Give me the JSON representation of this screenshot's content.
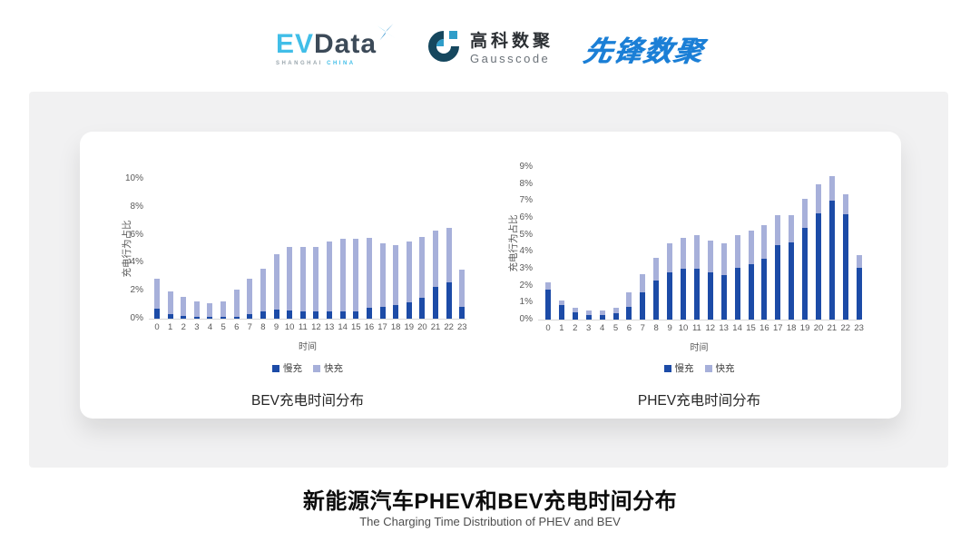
{
  "header": {
    "evdata": {
      "ev": "EV",
      "data": "Data",
      "sub_left": "SHANGHAI",
      "sub_right": "CHINA"
    },
    "gausscode": {
      "cn": "高科数聚",
      "en": "Gausscode"
    },
    "xianfeng": {
      "text": "先锋数聚"
    }
  },
  "footer": {
    "title": "新能源汽车PHEV和BEV充电时间分布",
    "subtitle": "The Charging Time Distribution of PHEV and BEV"
  },
  "colors": {
    "slow": "#1c4ba7",
    "fast": "#a7b0da",
    "axis_text": "#595959",
    "baseline": "#d9d9d9",
    "panel_bg": "#f1f1f2",
    "evdata_cyan": "#41bee8",
    "evdata_dark": "#3c4a58",
    "gauss_navy": "#15475e",
    "gauss_blue": "#2f9dc9",
    "xianfeng_blue": "#1b7fd6"
  },
  "chart_data": [
    {
      "type": "bar",
      "stacked": true,
      "title": "BEV充电时间分布",
      "xlabel": "时间",
      "ylabel": "充电行为占比",
      "ylim": [
        0,
        10
      ],
      "ytick_step": 2,
      "ytick_suffix": "%",
      "grid": false,
      "legend_position": "bottom",
      "categories": [
        "0",
        "1",
        "2",
        "3",
        "4",
        "5",
        "6",
        "7",
        "8",
        "9",
        "10",
        "11",
        "12",
        "13",
        "14",
        "15",
        "16",
        "17",
        "18",
        "19",
        "20",
        "21",
        "22",
        "23"
      ],
      "series": [
        {
          "name": "慢充",
          "values": [
            0.7,
            0.35,
            0.2,
            0.1,
            0.1,
            0.1,
            0.15,
            0.35,
            0.5,
            0.65,
            0.6,
            0.55,
            0.5,
            0.55,
            0.55,
            0.55,
            0.75,
            0.85,
            1.0,
            1.2,
            1.5,
            2.3,
            2.6,
            0.85
          ]
        },
        {
          "name": "快充",
          "values": [
            2.15,
            1.6,
            1.35,
            1.15,
            1.0,
            1.15,
            1.9,
            2.5,
            3.1,
            3.95,
            4.5,
            4.6,
            4.65,
            5.0,
            5.15,
            5.15,
            5.0,
            4.55,
            4.25,
            4.3,
            4.35,
            4.0,
            3.9,
            2.65
          ]
        }
      ]
    },
    {
      "type": "bar",
      "stacked": true,
      "title": "PHEV充电时间分布",
      "xlabel": "时间",
      "ylabel": "充电行为占比",
      "ylim": [
        0,
        9
      ],
      "ytick_step": 1,
      "ytick_suffix": "%",
      "grid": false,
      "legend_position": "bottom",
      "categories": [
        "0",
        "1",
        "2",
        "3",
        "4",
        "5",
        "6",
        "7",
        "8",
        "9",
        "10",
        "11",
        "12",
        "13",
        "14",
        "15",
        "16",
        "17",
        "18",
        "19",
        "20",
        "21",
        "22",
        "23"
      ],
      "series": [
        {
          "name": "慢充",
          "values": [
            1.75,
            0.85,
            0.45,
            0.25,
            0.25,
            0.35,
            0.75,
            1.6,
            2.3,
            2.8,
            3.0,
            3.0,
            2.8,
            2.65,
            3.05,
            3.25,
            3.6,
            4.4,
            4.55,
            5.4,
            6.25,
            7.0,
            6.2,
            3.05
          ]
        },
        {
          "name": "快充",
          "values": [
            0.45,
            0.3,
            0.27,
            0.3,
            0.3,
            0.35,
            0.85,
            1.1,
            1.35,
            1.7,
            1.8,
            2.0,
            1.85,
            1.85,
            1.95,
            2.0,
            1.95,
            1.75,
            1.6,
            1.7,
            1.75,
            1.45,
            1.2,
            0.75
          ]
        }
      ]
    }
  ]
}
